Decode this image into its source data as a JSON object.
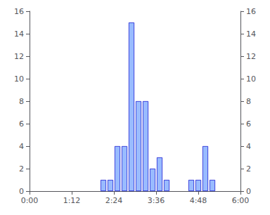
{
  "chart_data": {
    "type": "bar",
    "x": [
      126,
      138,
      150,
      162,
      174,
      186,
      198,
      210,
      222,
      234,
      276,
      288,
      300,
      312
    ],
    "values": [
      1,
      1,
      4,
      4,
      15,
      8,
      8,
      2,
      3,
      1,
      1,
      1,
      4,
      1
    ],
    "color": "#99bbff",
    "xlim": [
      0,
      360
    ],
    "xticks": [
      {
        "value": 0,
        "label": "0:00"
      },
      {
        "value": 72,
        "label": "1:12"
      },
      {
        "value": 144,
        "label": "2:24"
      },
      {
        "value": 216,
        "label": "3:36"
      },
      {
        "value": 288,
        "label": "4:48"
      },
      {
        "value": 360,
        "label": "6:00"
      }
    ],
    "ylim": [
      0,
      16
    ],
    "yticks": [
      0,
      2,
      4,
      6,
      8,
      10,
      12,
      14,
      16
    ],
    "y2lim": [
      0,
      16
    ],
    "y2ticks": [
      0,
      2,
      4,
      6,
      8,
      10,
      12,
      14,
      16
    ],
    "grid": false
  }
}
